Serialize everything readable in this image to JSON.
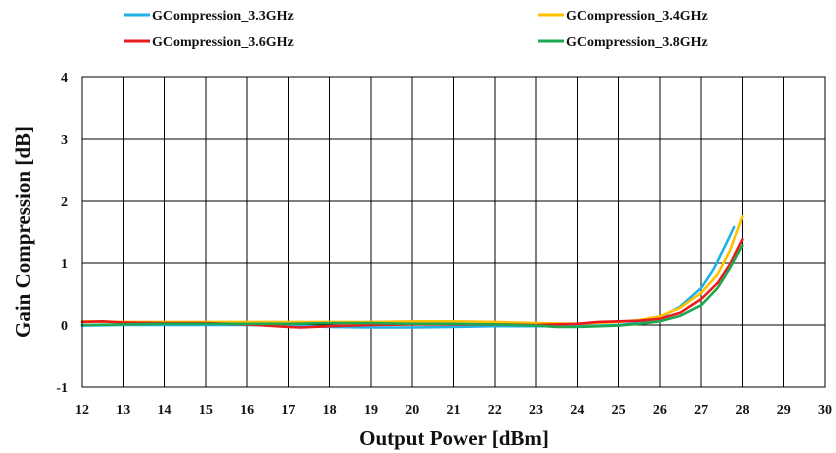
{
  "chart_data": {
    "type": "line",
    "title": "",
    "xlabel": "Output Power [dBm]",
    "ylabel": "Gain Compression [dB]",
    "xlim": [
      12,
      30
    ],
    "ylim": [
      -1,
      4
    ],
    "x_ticks": [
      12,
      13,
      14,
      15,
      16,
      17,
      18,
      19,
      20,
      21,
      22,
      23,
      24,
      25,
      26,
      27,
      28,
      29,
      30
    ],
    "x_tick_labels": [
      "12",
      "13",
      "14",
      "15",
      "16",
      "17",
      "18",
      "19",
      "20",
      "21",
      "22",
      "23",
      "24",
      "25",
      "26",
      "27",
      "28",
      "29",
      "30"
    ],
    "y_ticks": [
      -1,
      0,
      1,
      2,
      3,
      4
    ],
    "y_tick_labels": [
      "-1",
      "0",
      "1",
      "2",
      "3",
      "4"
    ],
    "grid": true,
    "legend_position": "top",
    "series": [
      {
        "name": "GCompression_3.3GHz",
        "color": "#1FB0E8",
        "x": [
          12,
          13,
          14,
          15,
          16,
          17,
          18,
          19,
          20,
          21,
          22,
          23,
          24,
          25,
          25.5,
          26,
          26.5,
          27,
          27.3,
          27.6,
          27.8
        ],
        "y": [
          -0.01,
          0.0,
          0.0,
          0.0,
          0.0,
          -0.01,
          -0.03,
          -0.04,
          -0.04,
          -0.03,
          -0.02,
          -0.02,
          -0.02,
          0.0,
          0.04,
          0.12,
          0.3,
          0.6,
          0.9,
          1.3,
          1.58
        ]
      },
      {
        "name": "GCompression_3.4GHz",
        "color": "#FFC000",
        "x": [
          12,
          13,
          14,
          15,
          16,
          17,
          18,
          19,
          20,
          21,
          22,
          23,
          24,
          25,
          25.5,
          26,
          26.5,
          27,
          27.4,
          27.7,
          28
        ],
        "y": [
          0.06,
          0.05,
          0.05,
          0.05,
          0.05,
          0.05,
          0.05,
          0.05,
          0.06,
          0.06,
          0.05,
          0.03,
          0.02,
          0.05,
          0.08,
          0.14,
          0.28,
          0.52,
          0.82,
          1.2,
          1.75
        ]
      },
      {
        "name": "GCompression_3.6GHz",
        "color": "#E81C1C",
        "x": [
          12,
          12.5,
          13,
          14,
          15,
          16,
          17,
          17.3,
          18,
          19,
          20,
          21,
          22,
          23,
          24,
          24.5,
          25,
          25.5,
          26,
          26.5,
          27,
          27.4,
          27.7,
          28
        ],
        "y": [
          0.05,
          0.06,
          0.04,
          0.03,
          0.03,
          0.01,
          -0.03,
          -0.04,
          -0.02,
          0.0,
          0.01,
          0.01,
          0.01,
          0.0,
          0.02,
          0.05,
          0.06,
          0.07,
          0.1,
          0.2,
          0.42,
          0.68,
          0.98,
          1.38
        ]
      },
      {
        "name": "GCompression_3.8GHz",
        "color": "#1EA84F",
        "x": [
          12,
          13,
          14,
          15,
          16,
          17,
          18,
          19,
          20,
          21,
          22,
          23,
          23.5,
          24,
          25,
          25.5,
          26,
          26.5,
          27,
          27.4,
          27.7,
          28
        ],
        "y": [
          0.0,
          0.01,
          0.02,
          0.02,
          0.02,
          0.02,
          0.03,
          0.03,
          0.02,
          0.02,
          0.01,
          -0.01,
          -0.03,
          -0.03,
          -0.01,
          0.02,
          0.06,
          0.15,
          0.32,
          0.6,
          0.92,
          1.28
        ]
      }
    ]
  }
}
